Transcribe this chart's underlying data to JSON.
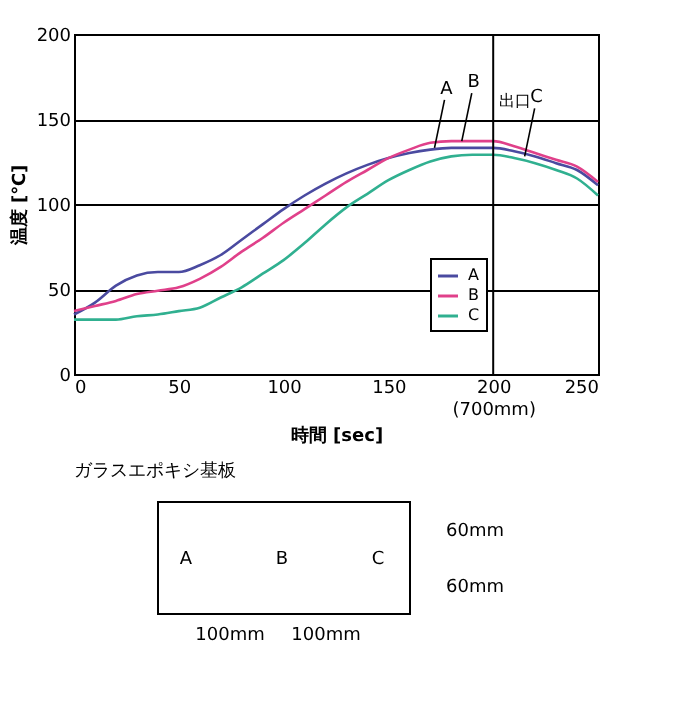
{
  "chart_data": [
    {
      "type": "line",
      "xlabel": "時間 [sec]",
      "ylabel": "温度 [℃]",
      "x": [
        0,
        10,
        20,
        30,
        40,
        50,
        60,
        70,
        80,
        90,
        100,
        110,
        120,
        130,
        140,
        150,
        160,
        170,
        180,
        190,
        200,
        210,
        220,
        230,
        240,
        250
      ],
      "series": [
        {
          "name": "A",
          "color": "#4a4aa0",
          "values": [
            35,
            42,
            52,
            58,
            60,
            60,
            64,
            70,
            79,
            88,
            97,
            105,
            112,
            118,
            123,
            127,
            130,
            132,
            133,
            133,
            133,
            131,
            128,
            124,
            120,
            111
          ]
        },
        {
          "name": "B",
          "color": "#e0408a",
          "values": [
            37,
            40,
            43,
            47,
            49,
            51,
            56,
            63,
            72,
            80,
            89,
            97,
            105,
            113,
            120,
            127,
            132,
            136,
            137,
            137,
            137,
            134,
            130,
            126,
            122,
            113
          ]
        },
        {
          "name": "C",
          "color": "#30b090",
          "values": [
            32,
            32,
            32,
            34,
            35,
            37,
            39,
            45,
            51,
            59,
            67,
            77,
            88,
            98,
            106,
            114,
            120,
            125,
            128,
            129,
            129,
            127,
            124,
            120,
            115,
            105
          ]
        }
      ],
      "xlim": [
        0,
        250
      ],
      "xticks": [
        0,
        50,
        100,
        150,
        {
          "value": 200,
          "label": "200\n(700mm)"
        },
        250
      ],
      "ylim": [
        0,
        200
      ],
      "yticks": [
        0,
        50,
        100,
        150,
        200
      ],
      "grid": "y",
      "legend": "bottom right",
      "ref_lines": [
        {
          "axis": "x",
          "value": 200,
          "label": "出口",
          "color": "#000000"
        }
      ],
      "annotations": [
        {
          "text": "A",
          "x": 172,
          "y": 133
        },
        {
          "text": "B",
          "x": 185,
          "y": 137
        },
        {
          "text": "C",
          "x": 215,
          "y": 128
        }
      ]
    },
    {
      "type": "other",
      "annotations": [
        "ガラスエポキシ基板",
        "A",
        "B",
        "C",
        "60mm",
        "60mm",
        "100mm",
        "100mm"
      ]
    }
  ]
}
